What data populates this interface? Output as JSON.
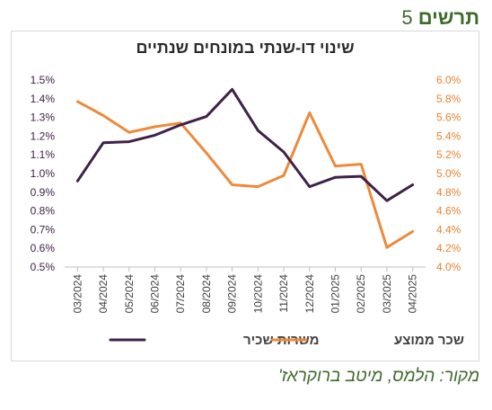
{
  "figure_heading": {
    "word": "תרשים",
    "number": "5"
  },
  "source_note": "מקור: הלמס, מיטב ברוקראז'",
  "chart_data": {
    "type": "line",
    "title": "שינוי דו-שנתי במונחים שנתיים",
    "categories": [
      "03/2024",
      "04/2024",
      "05/2024",
      "06/2024",
      "07/2024",
      "08/2024",
      "09/2024",
      "10/2024",
      "11/2024",
      "12/2024",
      "01/2025",
      "02/2025",
      "03/2025",
      "04/2025"
    ],
    "series": [
      {
        "name": "משרות שכיר",
        "axis": "left",
        "color": "#3f2148",
        "values": [
          0.96,
          1.165,
          1.17,
          1.205,
          1.26,
          1.305,
          1.45,
          1.23,
          1.115,
          0.93,
          0.98,
          0.985,
          0.855,
          0.94
        ]
      },
      {
        "name": "שכר ממוצע",
        "axis": "right",
        "color": "#ed8a3a",
        "values": [
          5.77,
          5.62,
          5.44,
          5.5,
          5.54,
          5.22,
          4.88,
          4.86,
          4.98,
          5.65,
          5.08,
          5.1,
          4.21,
          4.38
        ]
      }
    ],
    "y_left": {
      "min": 0.5,
      "max": 1.5,
      "step": 0.1,
      "format": "percent1",
      "color": "#3f2148",
      "tick_labels": [
        "0.5%",
        "0.6%",
        "0.7%",
        "0.8%",
        "0.9%",
        "1.0%",
        "1.1%",
        "1.2%",
        "1.3%",
        "1.4%",
        "1.5%"
      ]
    },
    "y_right": {
      "min": 4.0,
      "max": 6.0,
      "step": 0.2,
      "format": "percent1",
      "color": "#e8822f",
      "tick_labels": [
        "4.0%",
        "4.2%",
        "4.4%",
        "4.6%",
        "4.8%",
        "5.0%",
        "5.2%",
        "5.4%",
        "5.6%",
        "5.8%",
        "6.0%"
      ]
    },
    "grid": false,
    "legend_position": "bottom"
  }
}
